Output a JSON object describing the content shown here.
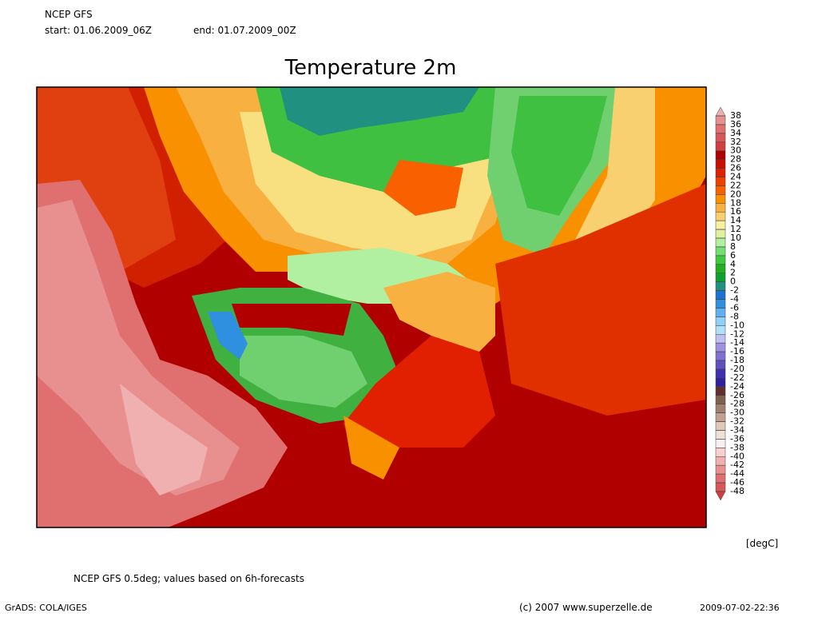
{
  "header": {
    "model": "NCEP GFS",
    "start": "start: 01.06.2009_06Z",
    "end": "end: 01.07.2009_00Z"
  },
  "title": "Temperature 2m",
  "colorbar": {
    "unit": "[degC]",
    "levels": [
      38,
      36,
      34,
      32,
      30,
      28,
      26,
      24,
      22,
      20,
      18,
      16,
      14,
      12,
      10,
      8,
      6,
      4,
      2,
      0,
      -2,
      -4,
      -6,
      -8,
      -10,
      -12,
      -14,
      -16,
      -18,
      -20,
      -22,
      -24,
      -26,
      -28,
      -30,
      -32,
      -34,
      -36,
      -38,
      -40,
      -42,
      -44,
      -46,
      -48
    ],
    "colors": [
      "#f0b0b0",
      "#e89090",
      "#e07070",
      "#d85858",
      "#d04040",
      "#b00000",
      "#c81000",
      "#e02000",
      "#f04000",
      "#f86000",
      "#f89000",
      "#f8b040",
      "#f8d070",
      "#f8f0a0",
      "#e0f0a0",
      "#b0f0a0",
      "#70e070",
      "#40c840",
      "#20b020",
      "#10a030",
      "#209080",
      "#2070d0",
      "#3090e0",
      "#60b0f0",
      "#90d0f8",
      "#b0e0f8",
      "#c0c0f0",
      "#a090e0",
      "#8070d0",
      "#6050c0",
      "#4030b0",
      "#3020a0",
      "#603030",
      "#806050",
      "#a08070",
      "#c0a090",
      "#e0c8b8",
      "#f0e0d8",
      "#f8f0f0",
      "#f8d0d0",
      "#f0b0b0",
      "#e89090",
      "#e07070",
      "#d85858",
      "#d04040"
    ]
  },
  "footer": {
    "note": "NCEP GFS 0.5deg; values based on 6h-forecasts",
    "software": "GrADS: COLA/IGES",
    "copyright": "(c) 2007 www.superzelle.de",
    "timestamp": "2009-07-02-22:36"
  }
}
